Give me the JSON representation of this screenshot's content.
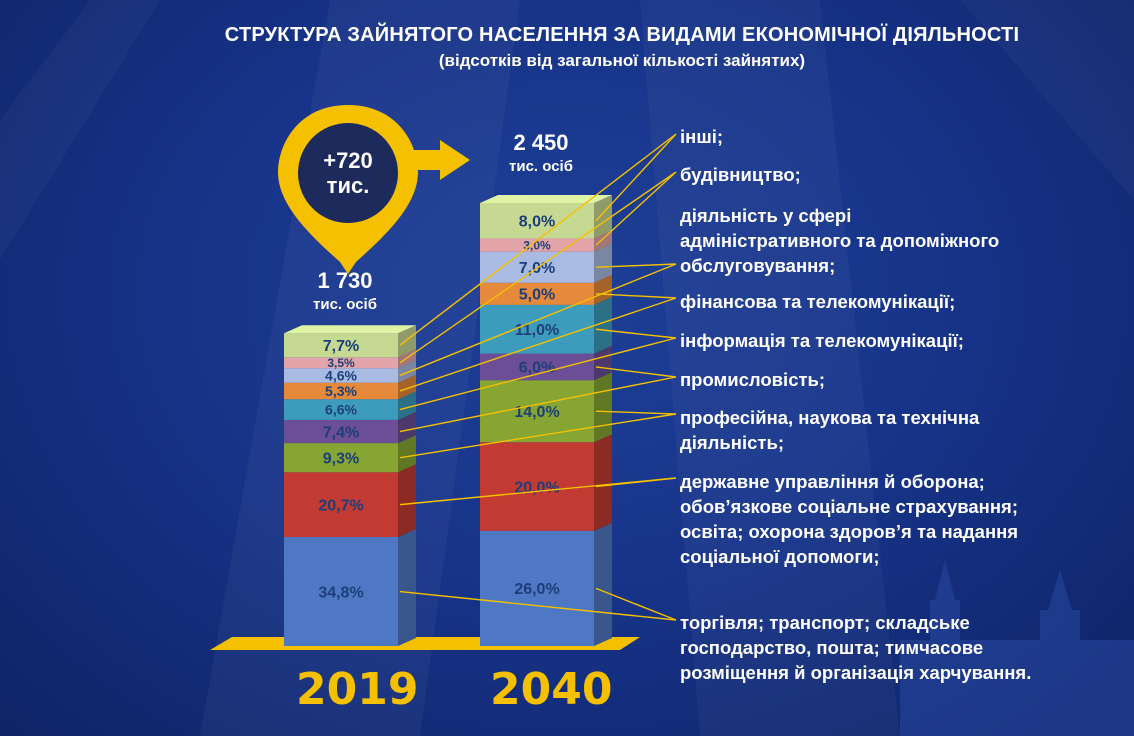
{
  "title": "СТРУКТУРА ЗАЙНЯТОГО НАСЕЛЕННЯ ЗА ВИДАМИ ЕКОНОМІЧНОЇ ДІЯЛЬНОСТІ",
  "subtitle": "(відсотків від загальної кількості зайнятих)",
  "badge": {
    "line1": "+720",
    "line2": "тис."
  },
  "colors": {
    "accent": "#f5c000",
    "segments": [
      "#4f78c4",
      "#c23a32",
      "#86a532",
      "#6b4e95",
      "#3d9cbc",
      "#e5893a",
      "#aabbe3",
      "#e2a4a9",
      "#c6d992"
    ]
  },
  "chart_data": {
    "type": "bar",
    "stacked": true,
    "title": "СТРУКТУРА ЗАЙНЯТОГО НАСЕЛЕННЯ ЗА ВИДАМИ ЕКОНОМІЧНОЇ ДІЯЛЬНОСТІ",
    "subtitle": "(відсотків від загальної кількості зайнятих)",
    "categories": [
      "2019",
      "2040"
    ],
    "totals": [
      {
        "value": "1 730",
        "unit": "тис. осіб"
      },
      {
        "value": "2 450",
        "unit": "тис. осіб"
      }
    ],
    "series": [
      {
        "name": "торгівля; транспорт; складське господарство, пошта; тимчасове розміщення й організація харчування.",
        "values": [
          34.8,
          26.0
        ],
        "labels": [
          "34,8%",
          "26,0%"
        ]
      },
      {
        "name": "державне управління й оборона; обов’язкове соціальне страхування; освіта; охорона здоров’я та надання соціальної допомоги;",
        "values": [
          20.7,
          20.0
        ],
        "labels": [
          "20,7%",
          "20,0%"
        ]
      },
      {
        "name": "професійна, наукова та технічна діяльність;",
        "values": [
          9.3,
          14.0
        ],
        "labels": [
          "9,3%",
          "14,0%"
        ]
      },
      {
        "name": "промисловість;",
        "values": [
          7.4,
          6.0
        ],
        "labels": [
          "7,4%",
          "6,0%"
        ]
      },
      {
        "name": "інформація та телекомунікації;",
        "values": [
          6.6,
          11.0
        ],
        "labels": [
          "6,6%",
          "11,0%"
        ]
      },
      {
        "name": "фінансова та телекомунікації;",
        "values": [
          5.3,
          5.0
        ],
        "labels": [
          "5,3%",
          "5,0%"
        ]
      },
      {
        "name": "діяльність у сфері адміністративного та допоміжного обслуговування;",
        "values": [
          4.6,
          7.0
        ],
        "labels": [
          "4,6%",
          "7,0%"
        ]
      },
      {
        "name": "будівництво;",
        "values": [
          3.5,
          3.0
        ],
        "labels": [
          "3,5%",
          "3,0%"
        ]
      },
      {
        "name": "інші;",
        "values": [
          7.7,
          8.0
        ],
        "labels": [
          "7,7%",
          "8,0%"
        ]
      }
    ]
  }
}
